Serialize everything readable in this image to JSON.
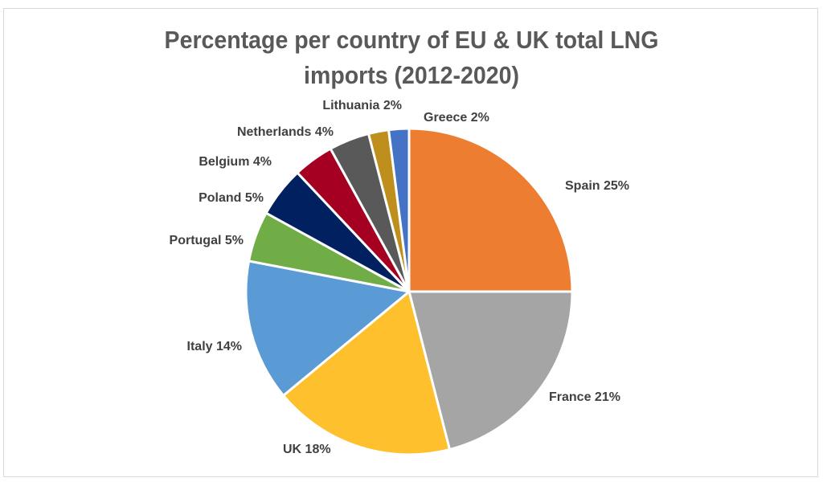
{
  "chart_data": {
    "type": "pie",
    "title_line1": "Percentage per country of EU & UK total LNG",
    "title_line2": "imports (2012-2020)",
    "start": "top",
    "direction": "clockwise",
    "slices": [
      {
        "label": "Spain",
        "value": 25,
        "display": "Spain 25%",
        "color": "#ED7D31"
      },
      {
        "label": "France",
        "value": 21,
        "display": "France 21%",
        "color": "#A5A5A5"
      },
      {
        "label": "UK",
        "value": 18,
        "display": "UK 18%",
        "color": "#FFC02E"
      },
      {
        "label": "Italy",
        "value": 14,
        "display": "Italy 14%",
        "color": "#5B9BD5"
      },
      {
        "label": "Portugal",
        "value": 5,
        "display": "Portugal 5%",
        "color": "#70AD47"
      },
      {
        "label": "Poland",
        "value": 5,
        "display": "Poland 5%",
        "color": "#002060"
      },
      {
        "label": "Belgium",
        "value": 4,
        "display": "Belgium 4%",
        "color": "#A50021"
      },
      {
        "label": "Netherlands",
        "value": 4,
        "display": "Netherlands 4%",
        "color": "#595959"
      },
      {
        "label": "Lithuania",
        "value": 2,
        "display": "Lithuania 2%",
        "color": "#BF8F1E"
      },
      {
        "label": "Greece",
        "value": 2,
        "display": "Greece 2%",
        "color": "#4472C4"
      }
    ]
  }
}
